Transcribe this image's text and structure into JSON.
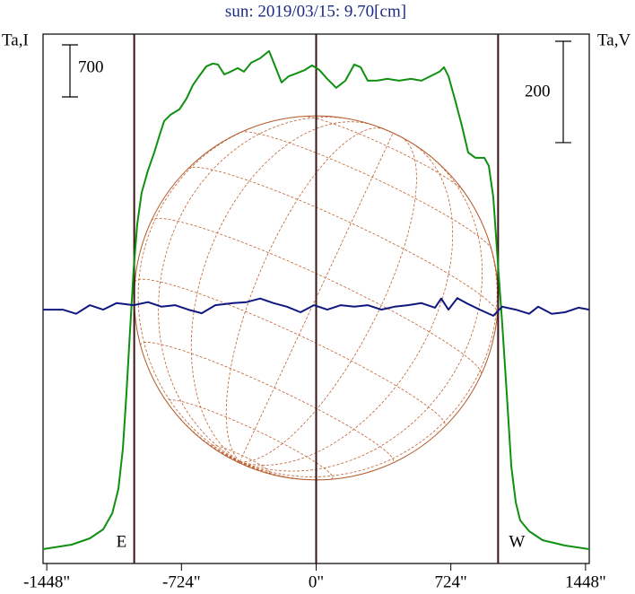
{
  "chart_data": {
    "type": "line",
    "title": "sun: 2019/03/15: 9.70[cm]",
    "y_label": "Ta,I",
    "y2_label": "Ta,V",
    "i_scale": 700,
    "v_scale": 200,
    "limb_labels": [
      "E",
      "W"
    ],
    "vlines": [
      -978,
      0,
      978
    ],
    "xlim": [
      -1468,
      1468
    ],
    "xticks": [
      {
        "value": -1448,
        "label": "-1448\""
      },
      {
        "value": -724,
        "label": "-724\""
      },
      {
        "value": 0,
        "label": "0\""
      },
      {
        "value": 724,
        "label": "724\""
      },
      {
        "value": 1448,
        "label": "1448\""
      }
    ],
    "ylim": [
      0,
      7120
    ],
    "y2lim": [
      -505,
      540
    ],
    "series": [
      {
        "color": "#109010",
        "x": [
          -1468,
          -1314,
          -1217,
          -1145,
          -1096,
          -1063,
          -1039,
          -1020,
          -1001,
          -981,
          -962,
          -938,
          -904,
          -870,
          -841,
          -817,
          -783,
          -735,
          -697,
          -663,
          -629,
          -590,
          -557,
          -528,
          -494,
          -460,
          -422,
          -388,
          -349,
          -301,
          -253,
          -224,
          -186,
          -147,
          -108,
          -60,
          -22,
          17,
          60,
          108,
          157,
          205,
          239,
          277,
          326,
          383,
          446,
          509,
          566,
          615,
          663,
          687,
          711,
          745,
          783,
          817,
          856,
          904,
          928,
          952,
          976,
          1000,
          1025,
          1049,
          1073,
          1097,
          1145,
          1217,
          1338,
          1468
        ],
        "values": [
          193,
          253,
          338,
          459,
          676,
          1002,
          1545,
          2269,
          3114,
          3959,
          4562,
          4985,
          5287,
          5528,
          5769,
          5951,
          6035,
          6107,
          6252,
          6433,
          6554,
          6687,
          6723,
          6711,
          6578,
          6614,
          6663,
          6614,
          6735,
          6795,
          6892,
          6711,
          6470,
          6554,
          6590,
          6639,
          6699,
          6639,
          6518,
          6397,
          6494,
          6711,
          6675,
          6494,
          6494,
          6518,
          6494,
          6518,
          6494,
          6554,
          6614,
          6675,
          6554,
          6252,
          5890,
          5528,
          5456,
          5456,
          5347,
          4925,
          4080,
          3235,
          2269,
          1304,
          821,
          579,
          435,
          314,
          241,
          193
        ]
      },
      {
        "color": "#101880",
        "axis": "y2",
        "x": [
          -1468,
          -1362,
          -1290,
          -1217,
          -1145,
          -1073,
          -981,
          -904,
          -831,
          -759,
          -687,
          -615,
          -542,
          -446,
          -374,
          -301,
          -229,
          -157,
          -84,
          -12,
          60,
          133,
          205,
          277,
          350,
          422,
          494,
          566,
          639,
          672,
          711,
          759,
          807,
          880,
          952,
          1000,
          1073,
          1145,
          1193,
          1266,
          1338,
          1410,
          1468
        ],
        "values": [
          -4,
          -4,
          -12,
          5,
          -4,
          9,
          5,
          11,
          2,
          5,
          -4,
          -11,
          5,
          9,
          11,
          18,
          9,
          2,
          -9,
          5,
          -4,
          5,
          2,
          5,
          -4,
          2,
          5,
          9,
          0,
          18,
          -4,
          19,
          9,
          -4,
          -16,
          2,
          -4,
          -12,
          2,
          -12,
          -9,
          0,
          -4
        ]
      }
    ]
  }
}
